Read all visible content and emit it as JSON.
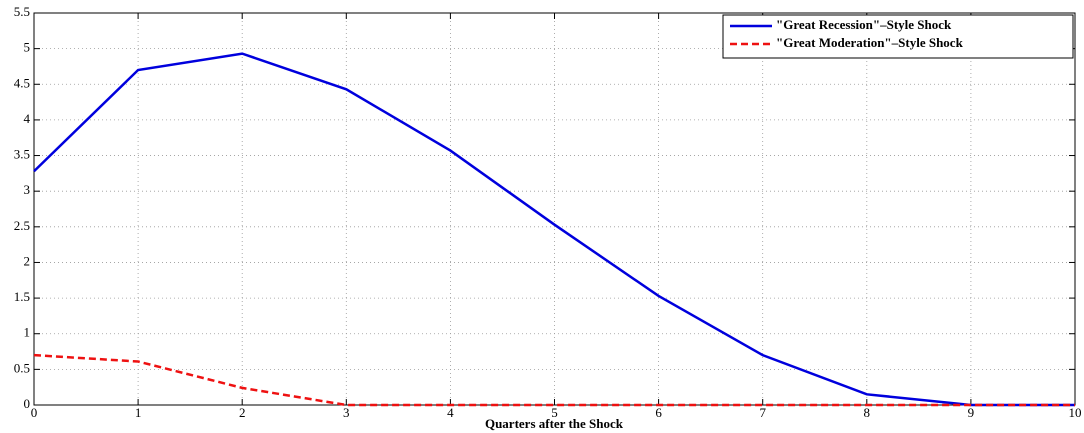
{
  "chart_data": {
    "type": "line",
    "x_label": "Quarters after the Shock",
    "x": [
      0,
      1,
      2,
      3,
      4,
      5,
      6,
      7,
      8,
      9,
      10
    ],
    "series": [
      {
        "name": "\"Great Recession\"–Style Shock",
        "color": "#0000dd",
        "dash": "solid",
        "values": [
          3.28,
          4.7,
          4.93,
          4.43,
          3.57,
          2.53,
          1.53,
          0.7,
          0.15,
          0,
          0
        ]
      },
      {
        "name": "\"Great Moderation\"–Style Shock",
        "color": "#ee1111",
        "dash": "dashed",
        "values": [
          0.7,
          0.61,
          0.24,
          0,
          0,
          0,
          0,
          0,
          0,
          0,
          0
        ]
      }
    ],
    "xlim": [
      0,
      10
    ],
    "xticks": [
      0,
      1,
      2,
      3,
      4,
      5,
      6,
      7,
      8,
      9,
      10
    ],
    "ylim": [
      0,
      5.5
    ],
    "yticks": [
      0,
      0.5,
      1,
      1.5,
      2,
      2.5,
      3,
      3.5,
      4,
      4.5,
      5,
      5.5
    ],
    "grid": true,
    "legend": "upper right"
  }
}
